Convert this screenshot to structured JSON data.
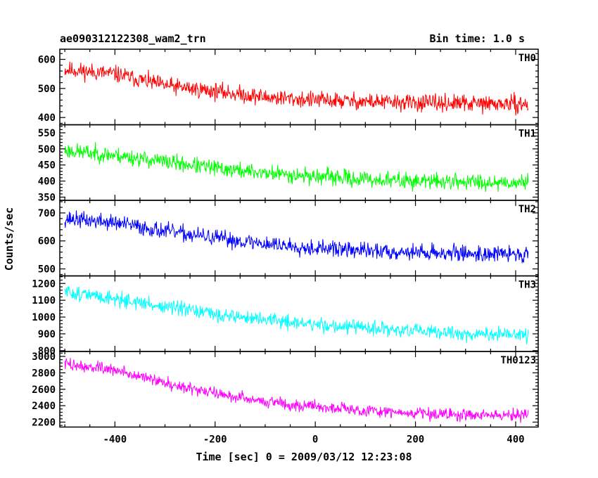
{
  "chart_data": {
    "type": "line",
    "title": "ae090312122308_wam2_trn",
    "subtitle": "Bin time: 1.0 s",
    "xlabel": "Time [sec] 0 = 2009/03/12 12:23:08",
    "ylabel": "Counts/sec",
    "xlim": [
      -510,
      445
    ],
    "x_ticks": [
      -400,
      -200,
      0,
      200,
      400
    ],
    "x_range": [
      -500,
      425
    ],
    "grid": false,
    "panels": [
      {
        "name": "TH0",
        "color": "#ff0000",
        "ylim": [
          375,
          635
        ],
        "y_ticks": [
          400,
          500,
          600
        ],
        "trend": [
          [
            -500,
            565
          ],
          [
            -400,
            550
          ],
          [
            -300,
            510
          ],
          [
            -200,
            490
          ],
          [
            -100,
            470
          ],
          [
            0,
            460
          ],
          [
            100,
            455
          ],
          [
            200,
            450
          ],
          [
            300,
            448
          ],
          [
            425,
            445
          ]
        ],
        "noise": 24,
        "seed": 11
      },
      {
        "name": "TH1",
        "color": "#00ff00",
        "ylim": [
          340,
          575
        ],
        "y_ticks": [
          350,
          400,
          450,
          500,
          550
        ],
        "trend": [
          [
            -500,
            495
          ],
          [
            -400,
            480
          ],
          [
            -300,
            460
          ],
          [
            -200,
            440
          ],
          [
            -100,
            425
          ],
          [
            0,
            415
          ],
          [
            100,
            405
          ],
          [
            200,
            400
          ],
          [
            300,
            398
          ],
          [
            425,
            395
          ]
        ],
        "noise": 21,
        "seed": 23
      },
      {
        "name": "TH2",
        "color": "#0000ff",
        "ylim": [
          475,
          745
        ],
        "y_ticks": [
          500,
          600,
          700
        ],
        "trend": [
          [
            -500,
            680
          ],
          [
            -400,
            665
          ],
          [
            -300,
            635
          ],
          [
            -200,
            610
          ],
          [
            -100,
            590
          ],
          [
            0,
            575
          ],
          [
            100,
            565
          ],
          [
            200,
            560
          ],
          [
            300,
            555
          ],
          [
            425,
            552
          ]
        ],
        "noise": 24,
        "seed": 37
      },
      {
        "name": "TH3",
        "color": "#00ffff",
        "ylim": [
          795,
          1245
        ],
        "y_ticks": [
          800,
          900,
          1000,
          1100,
          1200
        ],
        "trend": [
          [
            -500,
            1150
          ],
          [
            -400,
            1110
          ],
          [
            -300,
            1060
          ],
          [
            -200,
            1015
          ],
          [
            -100,
            985
          ],
          [
            0,
            955
          ],
          [
            100,
            935
          ],
          [
            200,
            915
          ],
          [
            300,
            900
          ],
          [
            425,
            890
          ]
        ],
        "noise": 36,
        "seed": 51
      },
      {
        "name": "TH0123",
        "color": "#ff00ff",
        "ylim": [
          2140,
          3060
        ],
        "y_ticks": [
          2200,
          2400,
          2600,
          2800,
          3000
        ],
        "trend": [
          [
            -500,
            2910
          ],
          [
            -400,
            2830
          ],
          [
            -300,
            2680
          ],
          [
            -200,
            2550
          ],
          [
            -100,
            2450
          ],
          [
            0,
            2390
          ],
          [
            100,
            2340
          ],
          [
            200,
            2310
          ],
          [
            300,
            2290
          ],
          [
            425,
            2280
          ]
        ],
        "noise": 60,
        "seed": 73
      }
    ]
  }
}
